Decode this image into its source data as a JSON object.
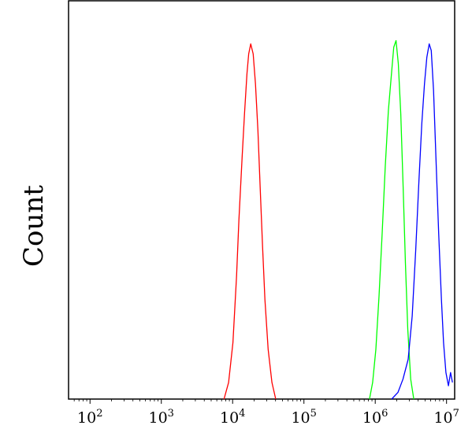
{
  "chart_data": {
    "type": "line",
    "title": "",
    "xlabel": "",
    "ylabel": "Count",
    "x_scale": "log",
    "xlim": [
      50,
      13000000
    ],
    "ylim": [
      0,
      1.2
    ],
    "grid": false,
    "x_ticks": [
      {
        "value": 100,
        "base": "10",
        "exp": "2"
      },
      {
        "value": 1000,
        "base": "10",
        "exp": "3"
      },
      {
        "value": 10000,
        "base": "10",
        "exp": "4"
      },
      {
        "value": 100000,
        "base": "10",
        "exp": "5"
      },
      {
        "value": 1000000,
        "base": "10",
        "exp": "6"
      },
      {
        "value": 10000000,
        "base": "10",
        "exp": "7"
      }
    ],
    "series": [
      {
        "color": "#ff0000",
        "x": [
          7580,
          8780,
          10100,
          11340,
          12250,
          13600,
          14690,
          15870,
          16800,
          17950,
          19400,
          20900,
          22600,
          24400,
          26300,
          28400,
          31500,
          35600,
          40200
        ],
        "y": [
          0.0,
          0.05,
          0.17,
          0.37,
          0.54,
          0.73,
          0.86,
          0.98,
          1.04,
          1.07,
          1.04,
          0.95,
          0.81,
          0.63,
          0.46,
          0.3,
          0.15,
          0.05,
          0.0
        ]
      },
      {
        "color": "#00ff00",
        "x": [
          830000,
          920000,
          1020000,
          1130000,
          1250000,
          1380000,
          1530000,
          1690000,
          1820000,
          1960000,
          2110000,
          2280000,
          2460000,
          2650000,
          2860000,
          3140000,
          3470000
        ],
        "y": [
          0.0,
          0.05,
          0.15,
          0.31,
          0.5,
          0.7,
          0.87,
          0.98,
          1.06,
          1.08,
          1.01,
          0.86,
          0.64,
          0.41,
          0.21,
          0.06,
          0.0
        ]
      },
      {
        "color": "#0000ff",
        "x": [
          1700000,
          2080000,
          2450000,
          2900000,
          3300000,
          3700000,
          4100000,
          4500000,
          4900000,
          5300000,
          5720000,
          6100000,
          6580000,
          7100000,
          7760000,
          8470000,
          9080000,
          9800000,
          10630000,
          11400000,
          12100000
        ],
        "y": [
          0.0,
          0.02,
          0.06,
          0.12,
          0.25,
          0.45,
          0.66,
          0.83,
          0.95,
          1.03,
          1.07,
          1.05,
          0.93,
          0.73,
          0.5,
          0.3,
          0.17,
          0.08,
          0.04,
          0.08,
          0.05
        ]
      }
    ]
  }
}
